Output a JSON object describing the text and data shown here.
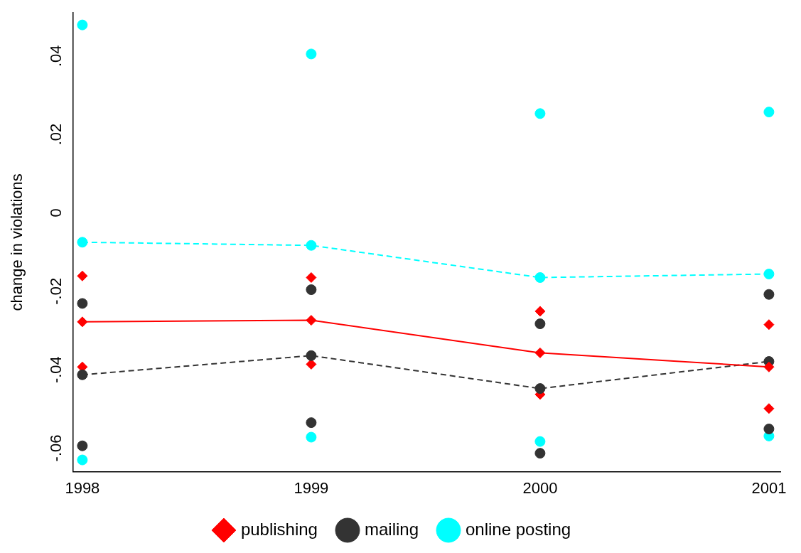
{
  "chart_data": {
    "type": "line",
    "ylabel": "change in violations",
    "x": [
      1998,
      1999,
      2000,
      2001
    ],
    "xlim": [
      1997.96,
      2001.05
    ],
    "xticks": [
      1998,
      1999,
      2000,
      2001
    ],
    "ylim": [
      -0.066,
      0.051
    ],
    "yticks": [
      {
        "value": -0.06,
        "label": "-.06"
      },
      {
        "value": -0.04,
        "label": "-.04"
      },
      {
        "value": -0.02,
        "label": "-.02"
      },
      {
        "value": 0,
        "label": "0"
      },
      {
        "value": 0.02,
        "label": ".02"
      },
      {
        "value": 0.04,
        "label": ".04"
      }
    ],
    "grid": false,
    "legend": "bottom",
    "series": [
      {
        "name": "publishing",
        "color": "#ff0000",
        "marker": "diamond",
        "line_style": "solid",
        "values": [
          -0.0278,
          -0.0274,
          -0.0357,
          -0.0393
        ]
      },
      {
        "name": "mailing",
        "color": "#333333",
        "marker": "circle",
        "line_style": "dashed",
        "values": [
          -0.0413,
          -0.0364,
          -0.0448,
          -0.0379
        ]
      },
      {
        "name": "online posting",
        "color": "#00ffff",
        "marker": "circle",
        "line_style": "dashed",
        "values": [
          -0.0075,
          -0.0083,
          -0.0165,
          -0.0156
        ]
      },
      {
        "type": "scatter",
        "color": "#ff0000",
        "marker": "diamond",
        "values": [
          -0.0161,
          -0.0165,
          -0.0251,
          -0.0285
        ]
      },
      {
        "type": "scatter",
        "color": "#ff0000",
        "marker": "diamond",
        "values": [
          -0.0393,
          -0.0386,
          -0.0463,
          -0.0499
        ]
      },
      {
        "type": "scatter",
        "color": "#333333",
        "marker": "circle",
        "values": [
          -0.0231,
          -0.0196,
          -0.0283,
          -0.0208
        ]
      },
      {
        "type": "scatter",
        "color": "#333333",
        "marker": "circle",
        "values": [
          -0.0594,
          -0.0535,
          -0.0613,
          -0.0551
        ]
      },
      {
        "type": "scatter",
        "color": "#00ffff",
        "marker": "circle",
        "values": [
          0.0479,
          0.0405,
          0.0253,
          0.0257
        ]
      },
      {
        "type": "scatter",
        "color": "#00ffff",
        "marker": "circle",
        "values": [
          -0.063,
          -0.0572,
          -0.0583,
          -0.0569
        ]
      }
    ]
  }
}
